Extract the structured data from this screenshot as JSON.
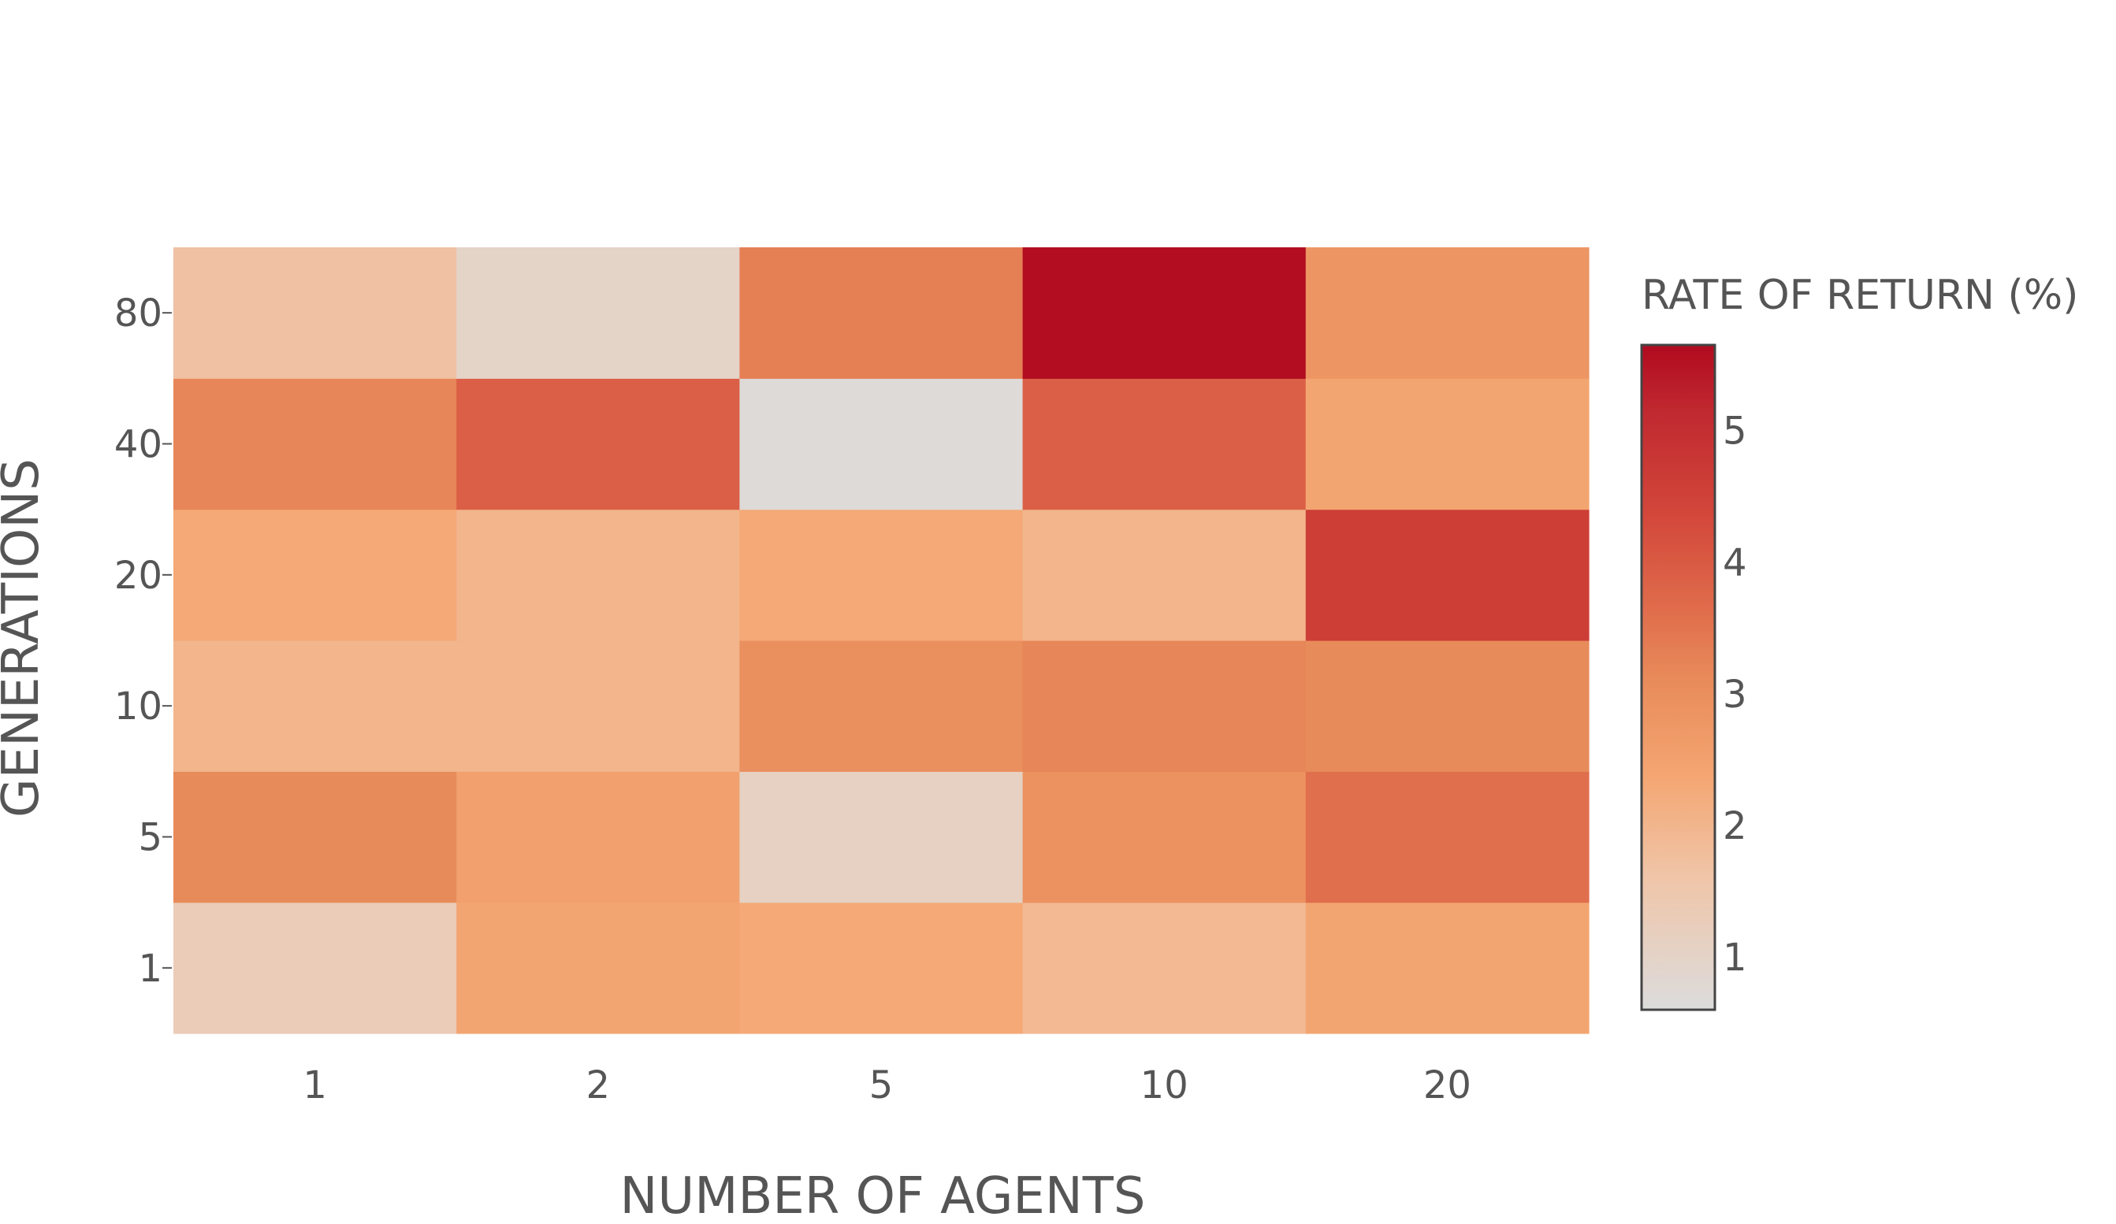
{
  "chart_data": {
    "type": "heatmap",
    "xlabel": "NUMBER OF AGENTS",
    "ylabel": "GENERATIONS",
    "x": [
      "1",
      "2",
      "5",
      "10",
      "20"
    ],
    "y": [
      "1",
      "5",
      "10",
      "20",
      "40",
      "80"
    ],
    "z": [
      [
        1.3,
        2.4,
        2.3,
        1.9,
        2.4
      ],
      [
        3.1,
        2.5,
        1.1,
        2.9,
        3.6
      ],
      [
        2.0,
        2.0,
        3.0,
        3.2,
        3.1
      ],
      [
        2.3,
        2.0,
        2.3,
        2.0,
        4.6
      ],
      [
        3.2,
        3.9,
        0.7,
        3.9,
        2.4
      ],
      [
        1.7,
        1.0,
        3.3,
        5.6,
        2.8
      ]
    ],
    "colorbar": {
      "title": "RATE OF RETURN (%)",
      "range": [
        0.6,
        5.65
      ],
      "ticks": [
        "1",
        "2",
        "3",
        "4",
        "5"
      ]
    },
    "colorscale": [
      [
        0.0,
        "#dcdcdc"
      ],
      [
        0.2,
        "#f0c5a8"
      ],
      [
        0.35,
        "#f4a672"
      ],
      [
        0.5,
        "#e88a5a"
      ],
      [
        0.6,
        "#e06d4c"
      ],
      [
        0.75,
        "#d2463a"
      ],
      [
        0.9,
        "#c02930"
      ],
      [
        1.0,
        "#b10a1f"
      ]
    ],
    "grid": false,
    "legend": "none"
  }
}
